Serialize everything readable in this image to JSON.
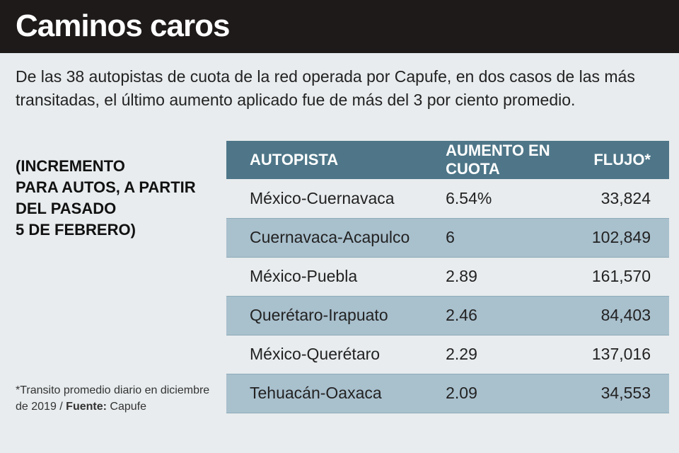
{
  "title": "Caminos caros",
  "intro": "De las 38 autopistas de cuota de la red operada por Capufe, en dos casos de las más transitadas, el último aumento aplicado fue de más del 3 por ciento promedio.",
  "note": "(INCREMENTO\nPARA AUTOS, A PARTIR\nDEL PASADO\n5 DE FEBRERO)",
  "footnote": {
    "text": "*Transito promedio diario en diciembre de 2019 / ",
    "source_label": "Fuente:",
    "source": " Capufe"
  },
  "colors": {
    "header_bg": "#1e1a19",
    "table_header_bg": "#4e7688",
    "row_alt_bg": "#a9c0cd",
    "page_bg": "#e8ecee"
  },
  "chart_data": {
    "type": "table",
    "columns": [
      "AUTOPISTA",
      "AUMENTO EN CUOTA",
      "FLUJO*"
    ],
    "rows": [
      {
        "autopista": "México-Cuernavaca",
        "aumento": "6.54%",
        "flujo": "33,824"
      },
      {
        "autopista": "Cuernavaca-Acapulco",
        "aumento": "6",
        "flujo": "102,849"
      },
      {
        "autopista": "México-Puebla",
        "aumento": "2.89",
        "flujo": "161,570"
      },
      {
        "autopista": "Querétaro-Irapuato",
        "aumento": "2.46",
        "flujo": "84,403"
      },
      {
        "autopista": "México-Querétaro",
        "aumento": "2.29",
        "flujo": "137,016"
      },
      {
        "autopista": "Tehuacán-Oaxaca",
        "aumento": "2.09",
        "flujo": "34,553"
      }
    ]
  }
}
